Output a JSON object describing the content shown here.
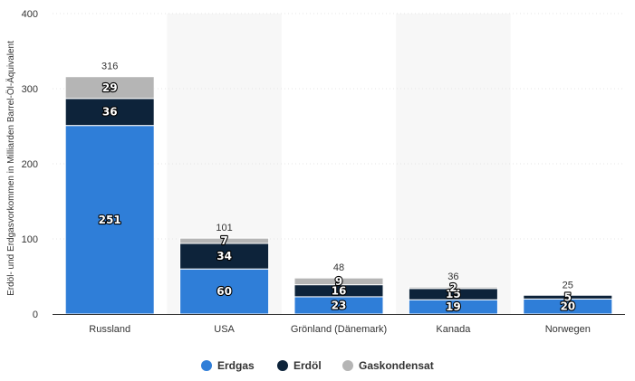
{
  "chart_data": {
    "type": "bar",
    "stacked": true,
    "categories": [
      "Russland",
      "USA",
      "Grönland (Dänemark)",
      "Kanada",
      "Norwegen"
    ],
    "series": [
      {
        "name": "Erdgas",
        "values": [
          251,
          60,
          23,
          19,
          20
        ],
        "color": "#2f7ed8"
      },
      {
        "name": "Erdöl",
        "values": [
          36,
          34,
          16,
          15,
          5
        ],
        "color": "#0d233a"
      },
      {
        "name": "Gaskondensat",
        "values": [
          29,
          7,
          9,
          2,
          0
        ],
        "color": "#b5b5b5"
      }
    ],
    "segment_labels": [
      [
        "251",
        "36",
        "29"
      ],
      [
        "60",
        "34",
        "7"
      ],
      [
        "23",
        "16",
        "9"
      ],
      [
        "19",
        "15",
        "2"
      ],
      [
        "20",
        "5",
        ""
      ]
    ],
    "totals": [
      "316",
      "101",
      "48",
      "36",
      "25"
    ],
    "ylabel": "Erdöl- und Erdgasvorkommen in Milliarden Barrel-Öl-Äquivalent",
    "ylim": [
      0,
      400
    ],
    "yticks": [
      0,
      100,
      200,
      300,
      400
    ],
    "grid": true,
    "legend_position": "bottom-center",
    "colors": {
      "band": "#f7f7f7",
      "grid": "#e6e6e6",
      "axis": "#333333"
    }
  }
}
